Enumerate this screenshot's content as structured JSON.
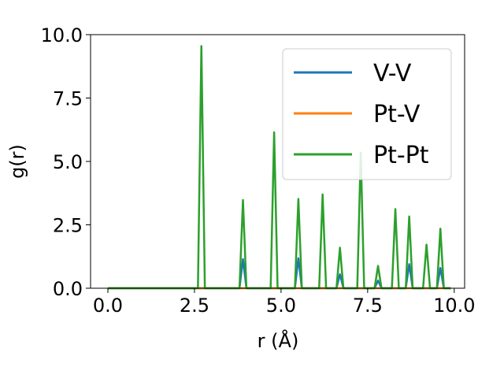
{
  "chart_data": {
    "type": "line",
    "xlabel": "r (Å)",
    "ylabel": "g(r)",
    "xlim": [
      -0.5,
      10.3
    ],
    "ylim": [
      0,
      10
    ],
    "xticks": [
      0.0,
      2.5,
      5.0,
      7.5,
      10.0
    ],
    "xtick_labels": [
      "0.0",
      "2.5",
      "5.0",
      "7.5",
      "10.0"
    ],
    "yticks": [
      0.0,
      2.5,
      5.0,
      7.5,
      10.0
    ],
    "ytick_labels": [
      "0.0",
      "2.5",
      "5.0",
      "7.5",
      "10.0"
    ],
    "grid": false,
    "legend": "top-right",
    "series": [
      {
        "name": "V-V",
        "color": "#1f77b4",
        "x": [
          0.0,
          3.8,
          3.9,
          4.0,
          5.4,
          5.5,
          5.6,
          6.6,
          6.7,
          6.8,
          7.7,
          7.8,
          7.9,
          8.6,
          8.7,
          8.8,
          9.5,
          9.6,
          9.7,
          9.9
        ],
        "y": [
          0.0,
          0.0,
          1.15,
          0.0,
          0.0,
          1.18,
          0.0,
          0.0,
          0.55,
          0.0,
          0.0,
          0.3,
          0.0,
          0.0,
          0.95,
          0.0,
          0.0,
          0.8,
          0.0,
          0.0
        ]
      },
      {
        "name": "Pt-V",
        "color": "#ff7f0e",
        "x": [
          0.0,
          9.9
        ],
        "y": [
          0.0,
          0.0
        ]
      },
      {
        "name": "Pt-Pt",
        "color": "#2ca02c",
        "x": [
          0.0,
          2.6,
          2.7,
          2.8,
          3.8,
          3.9,
          4.0,
          4.7,
          4.8,
          4.9,
          5.4,
          5.5,
          5.6,
          6.1,
          6.2,
          6.3,
          6.6,
          6.7,
          6.8,
          7.2,
          7.3,
          7.4,
          7.7,
          7.8,
          7.9,
          8.2,
          8.3,
          8.4,
          8.6,
          8.7,
          8.8,
          9.1,
          9.2,
          9.3,
          9.5,
          9.6,
          9.7,
          9.9
        ],
        "y": [
          0.0,
          0.0,
          9.55,
          0.0,
          0.0,
          3.48,
          0.0,
          0.0,
          6.15,
          0.0,
          0.0,
          3.52,
          0.0,
          0.0,
          3.7,
          0.0,
          0.0,
          1.6,
          0.0,
          0.0,
          5.35,
          0.0,
          0.0,
          0.88,
          0.0,
          0.0,
          3.12,
          0.0,
          0.0,
          2.83,
          0.0,
          0.0,
          1.72,
          0.0,
          0.0,
          2.35,
          0.0,
          0.0
        ]
      }
    ]
  }
}
